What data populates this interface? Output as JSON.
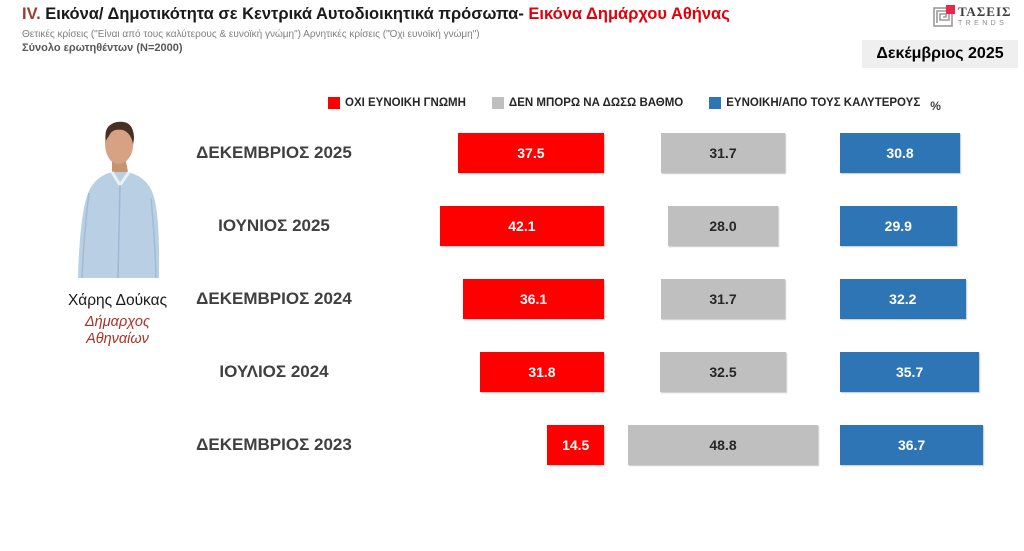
{
  "header": {
    "title_prefix": "IV.",
    "title_main": " Εικόνα/ Δημοτικότητα σε Κεντρικά Αυτοδιοικητικά πρόσωπα- ",
    "title_highlight": "Εικόνα Δημάρχου Αθήνας",
    "subtitle": "Θετικές κρίσεις (\"Είναι από τους καλύτερους & ευνοϊκή γνώμη\")  Αρνητικές κρίσεις (\"Όχι ευνοϊκή γνώμη\")",
    "sample": "Σύνολο ερωτηθέντων (N=2000)",
    "date_badge": "Δεκέμβριος 2025",
    "logo": {
      "name": "ΤΑΣΕΙΣ",
      "sub": "TRENDS",
      "accent_color": "#e8274b",
      "gray_color": "#9a9a9a"
    }
  },
  "person": {
    "name": "Χάρης Δούκας",
    "role_line1": "Δήμαρχος",
    "role_line2": "Αθηναίων",
    "photo": "portrait-man-light-blue-shirt"
  },
  "unit_label": "%",
  "legend": [
    {
      "label": "ΟΧΙ ΕΥΝΟΙΚΗ ΓΝΩΜΗ",
      "color": "#ff0000"
    },
    {
      "label": "ΔΕΝ ΜΠΟΡΩ ΝΑ ΔΩΣΩ ΒΑΘΜΟ",
      "color": "#bfbfbf"
    },
    {
      "label": "ΕΥΝΟΙΚΗ/ΑΠΟ ΤΟΥΣ ΚΑΛΥΤΕΡΟΥΣ",
      "color": "#2e75b6"
    }
  ],
  "chart_data": {
    "type": "bar",
    "orientation": "horizontal-diverging",
    "unit": "%",
    "categories": [
      "ΔΕΚΕΜΒΡΙΟΣ 2025",
      "ΙΟΥΝΙΟΣ 2025",
      "ΔΕΚΕΜΒΡΙΟΣ 2024",
      "ΙΟΥΛΙΟΣ 2024",
      "ΔΕΚΕΜΒΡΙΟΣ 2023"
    ],
    "series": [
      {
        "name": "ΟΧΙ ΕΥΝΟΙΚΗ ΓΝΩΜΗ",
        "color": "#ff0000",
        "label_color": "#ffffff",
        "align": "right",
        "values": [
          37.5,
          42.1,
          36.1,
          31.8,
          14.5
        ],
        "display": [
          "37.5",
          "42.1",
          "36.1",
          "31.8",
          "14.5"
        ]
      },
      {
        "name": "ΔΕΝ ΜΠΟΡΩ ΝΑ ΔΩΣΩ ΒΑΘΜΟ",
        "color": "#bfbfbf",
        "label_color": "#262626",
        "align": "center",
        "values": [
          31.7,
          28.0,
          31.7,
          32.5,
          48.8
        ],
        "display": [
          "31.7",
          "28.0",
          "31.7",
          "32.5",
          "48.8"
        ]
      },
      {
        "name": "ΕΥΝΟΙΚΗ/ΑΠΟ ΤΟΥΣ ΚΑΛΥΤΕΡΟΥΣ",
        "color": "#2e75b6",
        "label_color": "#ffffff",
        "align": "left",
        "values": [
          30.8,
          29.9,
          32.2,
          35.7,
          36.7
        ],
        "display": [
          "30.8",
          "29.9",
          "32.2",
          "35.7",
          "36.7"
        ]
      }
    ],
    "legend_position": "top",
    "grid": false
  }
}
